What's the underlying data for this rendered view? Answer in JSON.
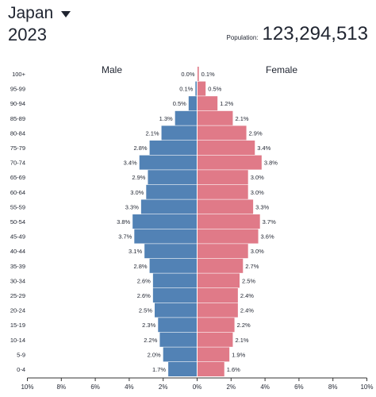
{
  "header": {
    "country": "Japan",
    "year": "2023",
    "population_label": "Population:",
    "population_value": "123,294,513"
  },
  "colors": {
    "male": "#5282b5",
    "female": "#e07a88",
    "axis": "#333333"
  },
  "chart_data": {
    "type": "bar",
    "orientation": "horizontal-population-pyramid",
    "categories": [
      "100+",
      "95-99",
      "90-94",
      "85-89",
      "80-84",
      "75-79",
      "70-74",
      "65-69",
      "60-64",
      "55-59",
      "50-54",
      "45-49",
      "40-44",
      "35-39",
      "30-34",
      "25-29",
      "20-24",
      "15-19",
      "10-14",
      "5-9",
      "0-4"
    ],
    "series": [
      {
        "name": "Male",
        "values": [
          0.0,
          0.1,
          0.5,
          1.3,
          2.1,
          2.8,
          3.4,
          2.9,
          3.0,
          3.3,
          3.8,
          3.7,
          3.1,
          2.8,
          2.6,
          2.6,
          2.5,
          2.3,
          2.2,
          2.0,
          1.7
        ],
        "labels": [
          "0.0%",
          "0.1%",
          "0.5%",
          "1.3%",
          "2.1%",
          "2.8%",
          "3.4%",
          "2.9%",
          "3.0%",
          "3.3%",
          "3.8%",
          "3.7%",
          "3.1%",
          "2.8%",
          "2.6%",
          "2.6%",
          "2.5%",
          "2.3%",
          "2.2%",
          "2.0%",
          "1.7%"
        ]
      },
      {
        "name": "Female",
        "values": [
          0.1,
          0.5,
          1.2,
          2.1,
          2.9,
          3.4,
          3.8,
          3.0,
          3.0,
          3.3,
          3.7,
          3.6,
          3.0,
          2.7,
          2.5,
          2.4,
          2.4,
          2.2,
          2.1,
          1.9,
          1.6
        ],
        "labels": [
          "0.1%",
          "0.5%",
          "1.2%",
          "2.1%",
          "2.9%",
          "3.4%",
          "3.8%",
          "3.0%",
          "3.0%",
          "3.3%",
          "3.7%",
          "3.6%",
          "3.0%",
          "2.7%",
          "2.5%",
          "2.4%",
          "2.4%",
          "2.2%",
          "2.1%",
          "1.9%",
          "1.6%"
        ]
      }
    ],
    "xlim": [
      -10,
      10
    ],
    "xticks": [
      -10,
      -8,
      -6,
      -4,
      -2,
      0,
      2,
      4,
      6,
      8,
      10
    ],
    "xtick_labels": [
      "10%",
      "8%",
      "6%",
      "4%",
      "2%",
      "0%",
      "2%",
      "4%",
      "6%",
      "8%",
      "10%"
    ],
    "grid": false
  }
}
